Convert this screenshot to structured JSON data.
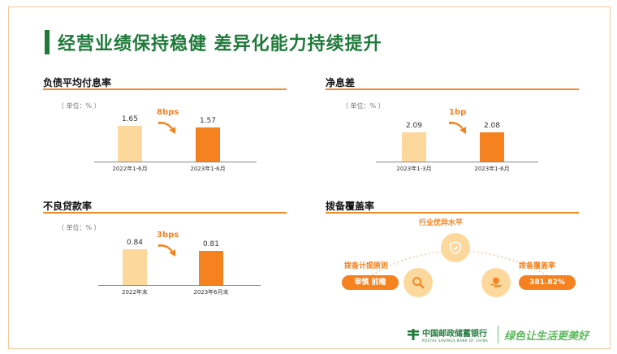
{
  "title": "经营业绩保持稳健  差异化能力持续提升",
  "sections": {
    "deposit_cost": {
      "title": "负债平均付息率",
      "unit": "（ 单位：% ）",
      "chart_data": {
        "type": "bar",
        "categories": [
          "2022年1-6月",
          "2023年1-6月"
        ],
        "values": [
          1.65,
          1.57
        ],
        "value_labels": [
          "1.65",
          "1.57"
        ]
      },
      "delta": "8bps"
    },
    "nim": {
      "title": "净息差",
      "unit": "（ 单位：% ）",
      "chart_data": {
        "type": "bar",
        "categories": [
          "2023年1-3月",
          "2023年1-6月"
        ],
        "values": [
          2.09,
          2.08
        ],
        "value_labels": [
          "2.09",
          "2.08"
        ]
      },
      "delta": "1bp"
    },
    "npl": {
      "title": "不良贷款率",
      "unit": "（ 单位：% ）",
      "chart_data": {
        "type": "bar",
        "categories": [
          "2022年末",
          "2023年6月末"
        ],
        "values": [
          0.84,
          0.81
        ],
        "value_labels": [
          "0.84",
          "0.81"
        ]
      },
      "delta": "3bps"
    },
    "coverage": {
      "title": "拨备覆盖率",
      "top_label": "行业优异水平",
      "left_label": "拨备计提原则",
      "left_pill": "审慎 前瞻",
      "right_label": "拨备覆盖率",
      "right_pill": "381.82%"
    }
  },
  "footer": {
    "bank_name": "中国邮政储蓄银行",
    "bank_name_en": "POSTAL SAVINGS BANK OF CHINA",
    "slogan": "绿色让生活更美好"
  },
  "colors": {
    "accent": "#f5821f",
    "light": "#fdd89c",
    "brand_green": "#1f7a3a"
  }
}
